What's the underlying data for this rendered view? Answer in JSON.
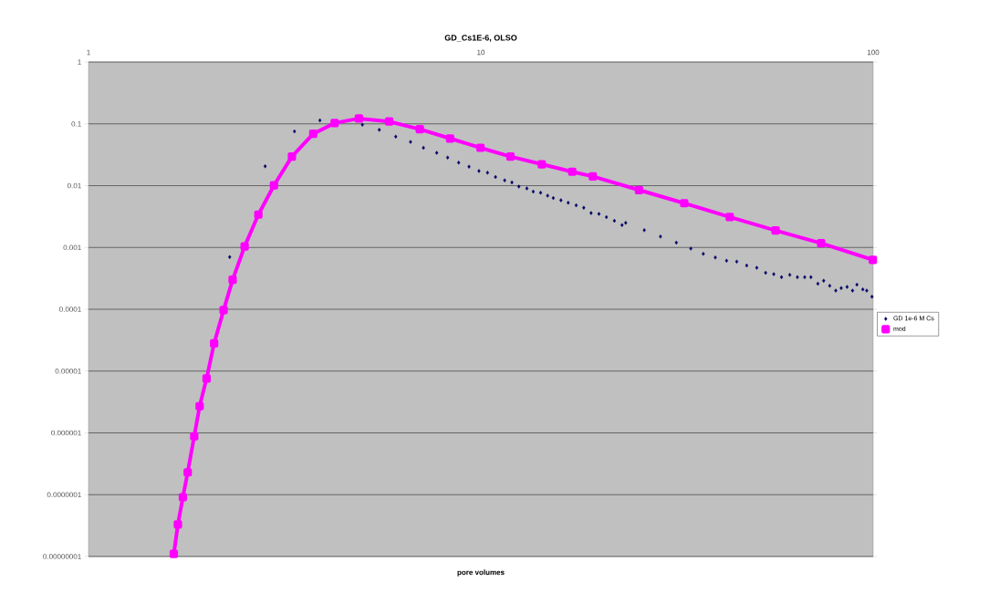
{
  "chart_data": {
    "type": "scatter",
    "title": "GD_Cs1E-6, OLSO",
    "xlabel": "pore volumes",
    "log": "xy",
    "grid": "y",
    "legend": "right",
    "xlim": [
      1,
      100
    ],
    "xticks": [
      1,
      10,
      100
    ],
    "ylim": [
      1e-08,
      1
    ],
    "yticks": [
      {
        "value": 1e-08,
        "label": "0.00000001"
      },
      {
        "value": 1e-07,
        "label": "0.0000001"
      },
      {
        "value": 1e-06,
        "label": "0.000001"
      },
      {
        "value": 1e-05,
        "label": "0.00001"
      },
      {
        "value": 0.0001,
        "label": "0.0001"
      },
      {
        "value": 0.001,
        "label": "0.001"
      },
      {
        "value": 0.01,
        "label": "0.01"
      },
      {
        "value": 0.1,
        "label": "0.1"
      },
      {
        "value": 1,
        "label": "1"
      }
    ],
    "series": [
      {
        "name": "GD 1e-6 M Cs",
        "color": "#000066",
        "marker": "diamond",
        "x": [
          2.29,
          2.82,
          3.35,
          3.89,
          4.99,
          5.51,
          6.07,
          6.62,
          7.14,
          7.72,
          8.23,
          8.78,
          9.33,
          9.89,
          10.4,
          10.9,
          11.5,
          12.0,
          12.5,
          13.1,
          13.6,
          14.2,
          14.8,
          15.3,
          16.0,
          16.7,
          17.5,
          18.3,
          19.1,
          20.0,
          20.9,
          21.9,
          22.9,
          23.4,
          26.1,
          28.7,
          31.5,
          34.3,
          36.9,
          39.6,
          42.3,
          44.9,
          47.6,
          50.5,
          53.2,
          55.8,
          58.4,
          61.3,
          64.1,
          66.9,
          69.4,
          72.3,
          74.8,
          77.5,
          80.3,
          82.9,
          85.8,
          88.6,
          90.9,
          94.1,
          96.3,
          99.3
        ],
        "values": [
          0.0007,
          0.0206,
          0.0755,
          0.114,
          0.097,
          0.08,
          0.062,
          0.051,
          0.041,
          0.034,
          0.0285,
          0.0236,
          0.0203,
          0.0173,
          0.0162,
          0.0138,
          0.0122,
          0.0113,
          0.0097,
          0.009,
          0.008,
          0.0077,
          0.0069,
          0.0063,
          0.0058,
          0.0053,
          0.0048,
          0.0044,
          0.0036,
          0.0035,
          0.0031,
          0.0027,
          0.0023,
          0.0025,
          0.0019,
          0.0015,
          0.0012,
          0.00096,
          0.00079,
          0.00069,
          0.00061,
          0.00059,
          0.00051,
          0.00047,
          0.00039,
          0.00037,
          0.00033,
          0.00036,
          0.00033,
          0.00033,
          0.00033,
          0.00026,
          0.00029,
          0.00024,
          0.0002,
          0.00022,
          0.00023,
          0.0002,
          0.00025,
          0.00021,
          0.0002,
          0.00016
        ]
      },
      {
        "name": "mod",
        "type": "line",
        "color": "#ff00ff",
        "marker": "square",
        "x": [
          1.65,
          1.69,
          1.74,
          1.79,
          1.86,
          1.92,
          2.0,
          2.09,
          2.21,
          2.33,
          2.5,
          2.71,
          2.97,
          3.3,
          3.74,
          4.24,
          4.89,
          5.84,
          6.99,
          8.35,
          9.98,
          11.9,
          14.3,
          17.1,
          19.3,
          25.3,
          33.0,
          43.1,
          56.4,
          73.7,
          99.8
        ],
        "values": [
          1.1e-08,
          3.3e-08,
          9.1e-08,
          2.3e-07,
          8.8e-07,
          2.7e-06,
          7.6e-06,
          2.8e-05,
          9.7e-05,
          0.0003,
          0.00104,
          0.0034,
          0.0101,
          0.0295,
          0.069,
          0.103,
          0.122,
          0.109,
          0.082,
          0.058,
          0.041,
          0.0295,
          0.0222,
          0.0168,
          0.0141,
          0.0085,
          0.0052,
          0.0031,
          0.00188,
          0.00117,
          0.00063
        ]
      }
    ]
  }
}
